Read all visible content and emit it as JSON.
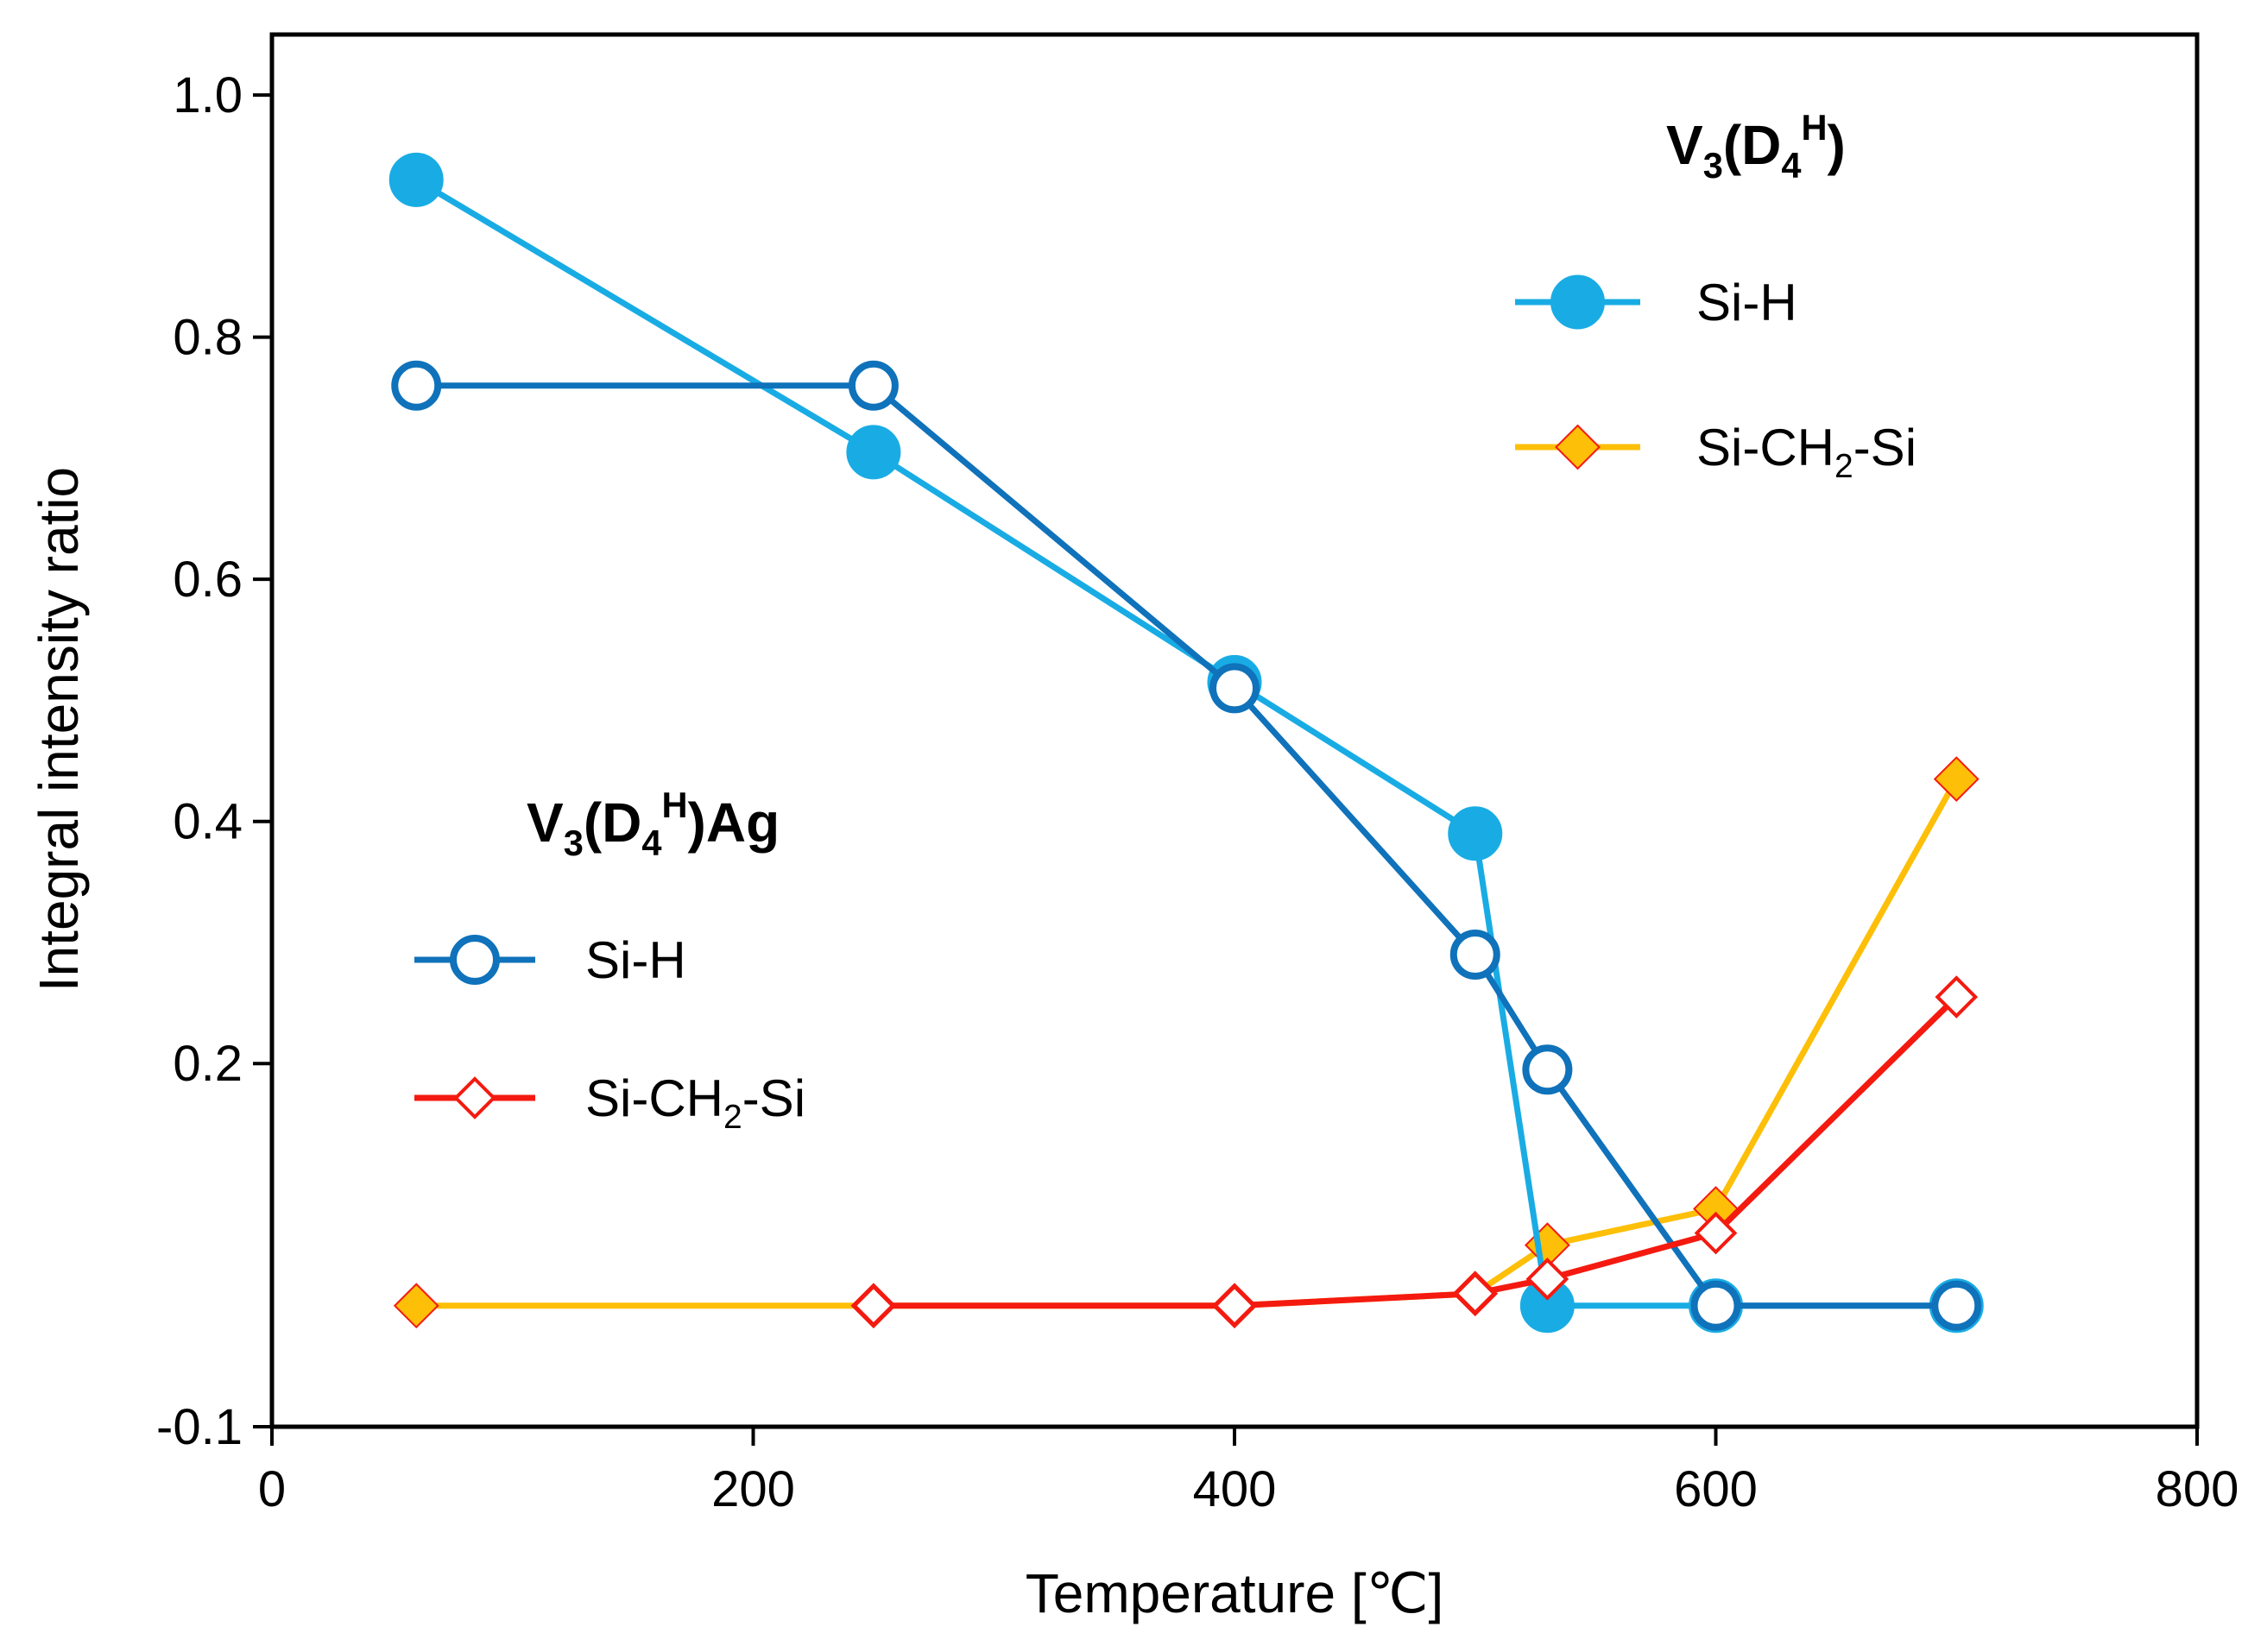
{
  "chart_data": {
    "type": "line",
    "title": "",
    "xlabel": "Temperature [℃]",
    "ylabel": "Integral intensity ratio",
    "xlim": [
      0,
      800
    ],
    "ylim": [
      -0.1,
      1.05
    ],
    "xticks": [
      0,
      200,
      400,
      600,
      800
    ],
    "xtick_labels": [
      "0",
      "200",
      "400",
      "600",
      "800"
    ],
    "yticks": [
      -0.1,
      0.2,
      0.4,
      0.6,
      0.8,
      1.0
    ],
    "ytick_labels": [
      "-0.1",
      "0.2",
      "0.4",
      "0.6",
      "0.8",
      "1.0"
    ],
    "grid": false,
    "groups": [
      {
        "title_main": "V",
        "title_sub1": "3",
        "title_mid": "(D",
        "title_sub2": "4",
        "title_sup": "H",
        "title_end": ")",
        "entries": [
          "Si-H",
          "Si-CH2-Si"
        ]
      },
      {
        "title_main": "V",
        "title_sub1": "3",
        "title_mid": "(D",
        "title_sub2": "4",
        "title_sup": "H",
        "title_end": ")Ag",
        "entries": [
          "Si-H",
          "Si-CH2-Si"
        ]
      }
    ],
    "series": [
      {
        "name": "Si-H",
        "group": "V3(D4H)",
        "label_main": "Si-H",
        "label_sub": "",
        "label_end": "",
        "color": "#19ACE4",
        "marker": "circle-filled",
        "x": [
          60,
          250,
          400,
          500,
          530,
          600,
          700
        ],
        "y": [
          0.93,
          0.705,
          0.515,
          0.39,
          0.0,
          0.0,
          0.0
        ]
      },
      {
        "name": "Si-CH2-Si",
        "group": "V3(D4H)",
        "label_main": "Si-CH",
        "label_sub": "2",
        "label_end": "-Si",
        "color": "#FDBF07",
        "marker": "diamond-filled",
        "x": [
          60,
          250,
          400,
          500,
          530,
          600,
          700
        ],
        "y": [
          0.0,
          0.0,
          0.0,
          0.01,
          0.05,
          0.08,
          0.435
        ]
      },
      {
        "name": "Si-H",
        "group": "V3(D4H)Ag",
        "label_main": "Si-H",
        "label_sub": "",
        "label_end": "",
        "color": "#0F72BA",
        "marker": "circle-open",
        "x": [
          60,
          250,
          400,
          500,
          530,
          600,
          700
        ],
        "y": [
          0.76,
          0.76,
          0.51,
          0.29,
          0.195,
          0.0,
          0.0
        ]
      },
      {
        "name": "Si-CH2-Si",
        "group": "V3(D4H)Ag",
        "label_main": "Si-CH",
        "label_sub": "2",
        "label_end": "-Si",
        "color": "#F41A10",
        "marker": "diamond-open",
        "x": [
          250,
          400,
          500,
          530,
          600,
          700
        ],
        "y": [
          0.0,
          0.0,
          0.01,
          0.022,
          0.06,
          0.255
        ]
      }
    ]
  }
}
